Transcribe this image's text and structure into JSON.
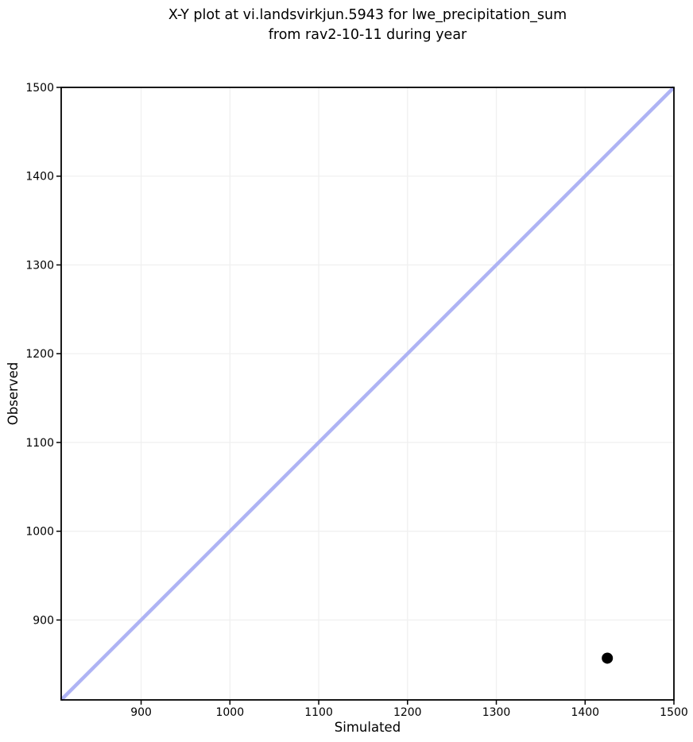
{
  "figure": {
    "title_line1": "X-Y plot at vi.landsvirkjun.5943 for lwe_precipitation_sum",
    "title_line2": "from rav2-10-11 during year"
  },
  "chart_data": {
    "type": "scatter",
    "title": "X-Y plot at vi.landsvirkjun.5943 for lwe_precipitation_sum from rav2-10-11 during year",
    "xlabel": "Simulated",
    "ylabel": "Observed",
    "xlim": [
      810,
      1500
    ],
    "ylim": [
      810,
      1500
    ],
    "xticks": [
      900,
      1000,
      1100,
      1200,
      1300,
      1400,
      1500
    ],
    "yticks": [
      900,
      1000,
      1100,
      1200,
      1300,
      1400,
      1500
    ],
    "grid": true,
    "grid_color": "#f0f0f0",
    "spine_color": "#000000",
    "background_color": "#ffffff",
    "legend": "none",
    "series": [
      {
        "name": "identity-line",
        "type": "line",
        "x": [
          810,
          1500
        ],
        "y": [
          810,
          1500
        ],
        "color": "#aeb3f4",
        "width": 4.5
      },
      {
        "name": "observed-vs-simulated",
        "type": "scatter",
        "points": [
          [
            1425,
            857
          ]
        ],
        "color": "#000000",
        "radius": 7
      }
    ]
  }
}
